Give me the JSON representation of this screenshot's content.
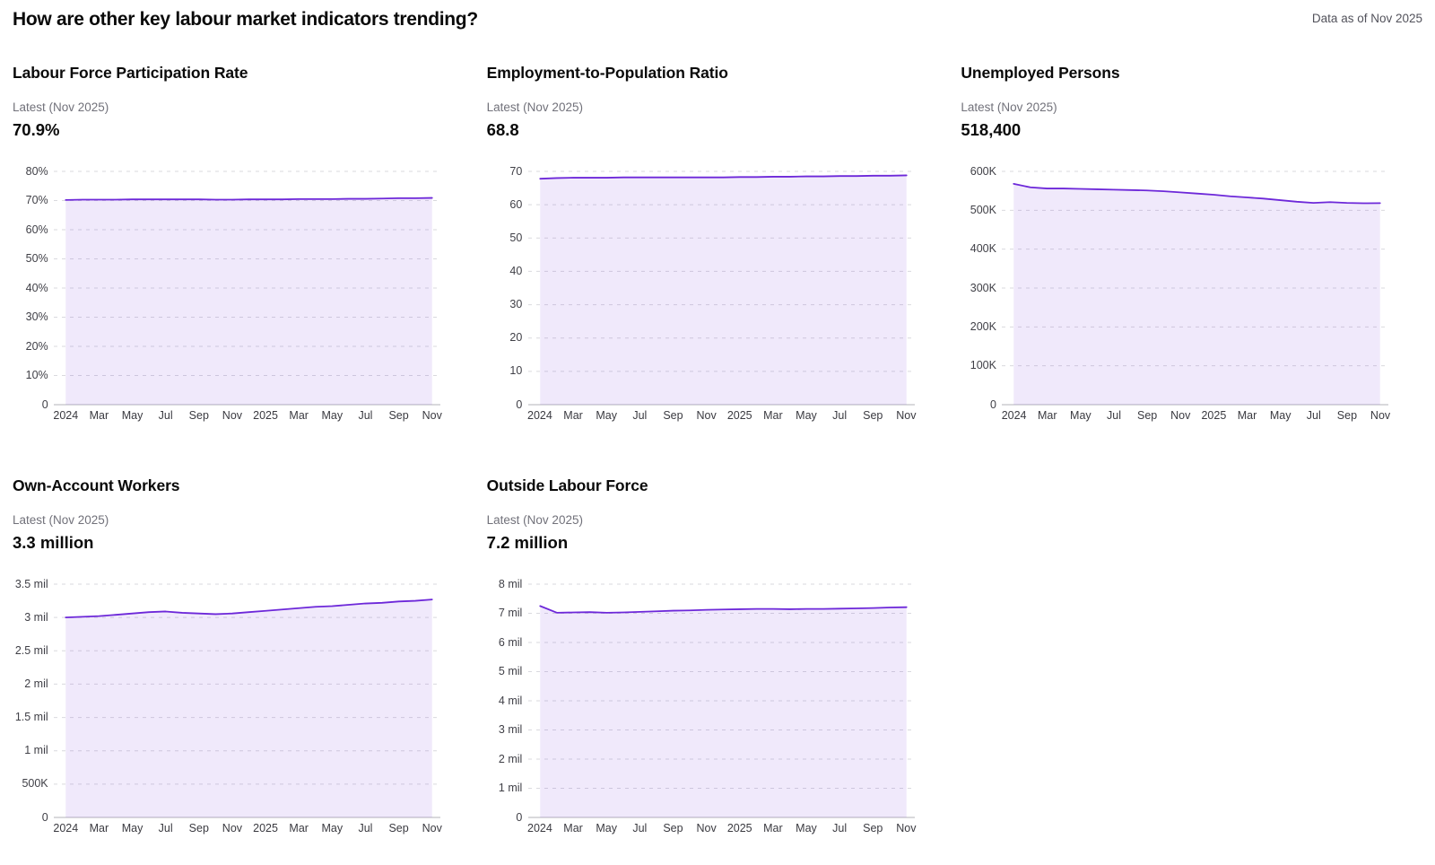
{
  "page": {
    "title": "How are other key labour market indicators trending?",
    "data_as_of": "Data as of Nov 2025"
  },
  "theme": {
    "line_color": "#6d28d9",
    "fill_color": "rgba(109,40,217,0.10)",
    "grid_color": "#d9d9de",
    "baseline_color": "#c2c2c8"
  },
  "chart_data": [
    {
      "type": "area",
      "title": "Labour Force Participation Rate",
      "latest_label": "Latest (Nov 2025)",
      "latest_value": "70.9%",
      "x": [
        "Jan 2024",
        "Feb 2024",
        "Mar 2024",
        "Apr 2024",
        "May 2024",
        "Jun 2024",
        "Jul 2024",
        "Aug 2024",
        "Sep 2024",
        "Oct 2024",
        "Nov 2024",
        "Dec 2024",
        "Jan 2025",
        "Feb 2025",
        "Mar 2025",
        "Apr 2025",
        "May 2025",
        "Jun 2025",
        "Jul 2025",
        "Aug 2025",
        "Sep 2025",
        "Oct 2025",
        "Nov 2025"
      ],
      "x_tick_labels": [
        "2024",
        "Mar",
        "May",
        "Jul",
        "Sep",
        "Nov",
        "2025",
        "Mar",
        "May",
        "Jul",
        "Sep",
        "Nov"
      ],
      "values": [
        70.2,
        70.3,
        70.3,
        70.3,
        70.4,
        70.4,
        70.4,
        70.4,
        70.4,
        70.3,
        70.3,
        70.4,
        70.4,
        70.4,
        70.5,
        70.5,
        70.5,
        70.6,
        70.6,
        70.7,
        70.8,
        70.8,
        70.9
      ],
      "ylim": [
        0,
        80
      ],
      "y_tick_labels": [
        "80%",
        "70%",
        "60%",
        "50%",
        "40%",
        "30%",
        "20%",
        "10%",
        "0"
      ],
      "grid": "dashed-horizontal",
      "legend": "none"
    },
    {
      "type": "area",
      "title": "Employment-to-Population Ratio",
      "latest_label": "Latest (Nov 2025)",
      "latest_value": "68.8",
      "x": [
        "Jan 2024",
        "Feb 2024",
        "Mar 2024",
        "Apr 2024",
        "May 2024",
        "Jun 2024",
        "Jul 2024",
        "Aug 2024",
        "Sep 2024",
        "Oct 2024",
        "Nov 2024",
        "Dec 2024",
        "Jan 2025",
        "Feb 2025",
        "Mar 2025",
        "Apr 2025",
        "May 2025",
        "Jun 2025",
        "Jul 2025",
        "Aug 2025",
        "Sep 2025",
        "Oct 2025",
        "Nov 2025"
      ],
      "x_tick_labels": [
        "2024",
        "Mar",
        "May",
        "Jul",
        "Sep",
        "Nov",
        "2025",
        "Mar",
        "May",
        "Jul",
        "Sep",
        "Nov"
      ],
      "values": [
        67.8,
        68.0,
        68.1,
        68.1,
        68.1,
        68.2,
        68.2,
        68.2,
        68.2,
        68.2,
        68.2,
        68.2,
        68.3,
        68.3,
        68.4,
        68.4,
        68.5,
        68.5,
        68.6,
        68.6,
        68.7,
        68.7,
        68.8
      ],
      "ylim": [
        0,
        70
      ],
      "y_tick_labels": [
        "70",
        "60",
        "50",
        "40",
        "30",
        "20",
        "10",
        "0"
      ],
      "grid": "dashed-horizontal",
      "legend": "none"
    },
    {
      "type": "area",
      "title": "Unemployed Persons",
      "latest_label": "Latest (Nov 2025)",
      "latest_value": "518,400",
      "x": [
        "Jan 2024",
        "Feb 2024",
        "Mar 2024",
        "Apr 2024",
        "May 2024",
        "Jun 2024",
        "Jul 2024",
        "Aug 2024",
        "Sep 2024",
        "Oct 2024",
        "Nov 2024",
        "Dec 2024",
        "Jan 2025",
        "Feb 2025",
        "Mar 2025",
        "Apr 2025",
        "May 2025",
        "Jun 2025",
        "Jul 2025",
        "Aug 2025",
        "Sep 2025",
        "Oct 2025",
        "Nov 2025"
      ],
      "x_tick_labels": [
        "2024",
        "Mar",
        "May",
        "Jul",
        "Sep",
        "Nov",
        "2025",
        "Mar",
        "May",
        "Jul",
        "Sep",
        "Nov"
      ],
      "values": [
        568000,
        559000,
        556000,
        556000,
        555000,
        554000,
        553000,
        552000,
        551000,
        549000,
        546000,
        543000,
        540000,
        536000,
        533000,
        530000,
        526000,
        522000,
        519000,
        521000,
        519000,
        518000,
        518400
      ],
      "ylim": [
        0,
        600000
      ],
      "y_tick_labels": [
        "600K",
        "500K",
        "400K",
        "300K",
        "200K",
        "100K",
        "0"
      ],
      "grid": "dashed-horizontal",
      "legend": "none"
    },
    {
      "type": "area",
      "title": "Own-Account Workers",
      "latest_label": "Latest (Nov 2025)",
      "latest_value": "3.3 million",
      "x": [
        "Jan 2024",
        "Feb 2024",
        "Mar 2024",
        "Apr 2024",
        "May 2024",
        "Jun 2024",
        "Jul 2024",
        "Aug 2024",
        "Sep 2024",
        "Oct 2024",
        "Nov 2024",
        "Dec 2024",
        "Jan 2025",
        "Feb 2025",
        "Mar 2025",
        "Apr 2025",
        "May 2025",
        "Jun 2025",
        "Jul 2025",
        "Aug 2025",
        "Sep 2025",
        "Oct 2025",
        "Nov 2025"
      ],
      "x_tick_labels": [
        "2024",
        "Mar",
        "May",
        "Jul",
        "Sep",
        "Nov",
        "2025",
        "Mar",
        "May",
        "Jul",
        "Sep",
        "Nov"
      ],
      "values": [
        3.0,
        3.01,
        3.02,
        3.04,
        3.06,
        3.08,
        3.09,
        3.07,
        3.06,
        3.05,
        3.06,
        3.08,
        3.1,
        3.12,
        3.14,
        3.16,
        3.17,
        3.19,
        3.21,
        3.22,
        3.24,
        3.25,
        3.27
      ],
      "ylim": [
        0,
        3.5
      ],
      "y_tick_labels": [
        "3.5 mil",
        "3 mil",
        "2.5 mil",
        "2 mil",
        "1.5 mil",
        "1 mil",
        "500K",
        "0"
      ],
      "grid": "dashed-horizontal",
      "legend": "none"
    },
    {
      "type": "area",
      "title": "Outside Labour Force",
      "latest_label": "Latest (Nov 2025)",
      "latest_value": "7.2 million",
      "x": [
        "Jan 2024",
        "Feb 2024",
        "Mar 2024",
        "Apr 2024",
        "May 2024",
        "Jun 2024",
        "Jul 2024",
        "Aug 2024",
        "Sep 2024",
        "Oct 2024",
        "Nov 2024",
        "Dec 2024",
        "Jan 2025",
        "Feb 2025",
        "Mar 2025",
        "Apr 2025",
        "May 2025",
        "Jun 2025",
        "Jul 2025",
        "Aug 2025",
        "Sep 2025",
        "Oct 2025",
        "Nov 2025"
      ],
      "x_tick_labels": [
        "2024",
        "Mar",
        "May",
        "Jul",
        "Sep",
        "Nov",
        "2025",
        "Mar",
        "May",
        "Jul",
        "Sep",
        "Nov"
      ],
      "values": [
        7.25,
        7.02,
        7.03,
        7.04,
        7.02,
        7.03,
        7.05,
        7.07,
        7.09,
        7.1,
        7.12,
        7.13,
        7.14,
        7.15,
        7.15,
        7.14,
        7.15,
        7.15,
        7.16,
        7.17,
        7.18,
        7.2,
        7.21
      ],
      "ylim": [
        0,
        8
      ],
      "y_tick_labels": [
        "8 mil",
        "7 mil",
        "6 mil",
        "5 mil",
        "4 mil",
        "3 mil",
        "2 mil",
        "1 mil",
        "0"
      ],
      "grid": "dashed-horizontal",
      "legend": "none"
    }
  ]
}
